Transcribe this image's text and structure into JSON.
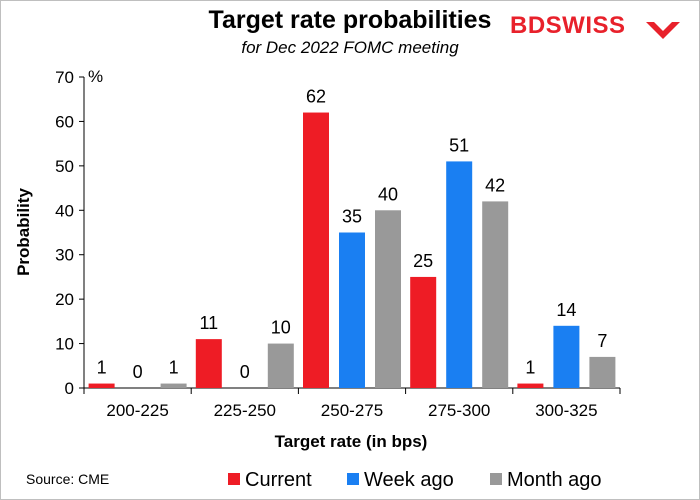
{
  "title": "Target rate probabilities",
  "subtitle": "for Dec 2022 FOMC meeting",
  "logo": {
    "text": "BDSWISS",
    "icon": "chevron-logo-icon",
    "color": "#e8212b"
  },
  "source": "Source: CME",
  "chart_data": {
    "type": "bar",
    "categories": [
      "200-225",
      "225-250",
      "250-275",
      "275-300",
      "300-325"
    ],
    "series": [
      {
        "name": "Current",
        "color": "#ee1c25",
        "values": [
          1,
          11,
          62,
          25,
          1
        ]
      },
      {
        "name": "Week ago",
        "color": "#1a7ff2",
        "values": [
          0,
          0,
          35,
          51,
          14
        ]
      },
      {
        "name": "Month ago",
        "color": "#999999",
        "values": [
          1,
          10,
          40,
          42,
          7
        ]
      }
    ],
    "xlabel": "Target rate (in bps)",
    "ylabel": "Probability",
    "yunit": "%",
    "ylim": [
      0,
      70
    ],
    "yticks": [
      0,
      10,
      20,
      30,
      40,
      50,
      60,
      70
    ],
    "grid": false,
    "legend": "bottom"
  }
}
